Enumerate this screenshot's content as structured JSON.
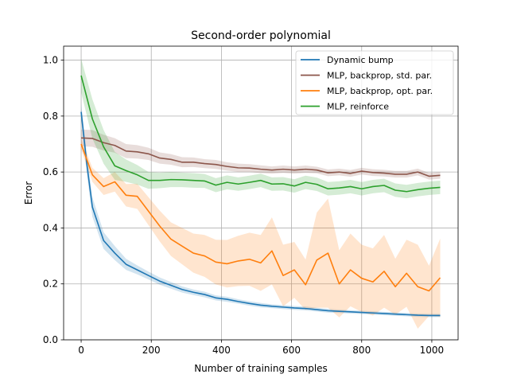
{
  "chart_data": {
    "type": "line",
    "title": "Second-order polynomial",
    "xlabel": "Number of training samples",
    "ylabel": "Error",
    "xlim": [
      -50,
      1075
    ],
    "ylim": [
      0.0,
      1.05
    ],
    "xticks": [
      0,
      200,
      400,
      600,
      800,
      1000
    ],
    "yticks": [
      0.0,
      0.2,
      0.4,
      0.6,
      0.8,
      1.0
    ],
    "xtick_labels": [
      "0",
      "200",
      "400",
      "600",
      "800",
      "1000"
    ],
    "ytick_labels": [
      "0.0",
      "0.2",
      "0.4",
      "0.6",
      "0.8",
      "1.0"
    ],
    "grid": true,
    "legend_position": "top-right",
    "series": [
      {
        "name": "Dynamic bump",
        "color": "#1f77b4",
        "x": [
          0,
          16,
          32,
          64,
          96,
          128,
          160,
          192,
          224,
          256,
          288,
          320,
          352,
          384,
          416,
          448,
          480,
          512,
          544,
          576,
          608,
          640,
          672,
          704,
          736,
          768,
          800,
          832,
          864,
          896,
          928,
          960,
          992,
          1024
        ],
        "y": [
          0.815,
          0.63,
          0.475,
          0.355,
          0.31,
          0.27,
          0.25,
          0.23,
          0.21,
          0.195,
          0.18,
          0.17,
          0.162,
          0.15,
          0.145,
          0.137,
          0.13,
          0.124,
          0.12,
          0.117,
          0.114,
          0.112,
          0.108,
          0.104,
          0.102,
          0.1,
          0.098,
          0.096,
          0.094,
          0.092,
          0.09,
          0.088,
          0.087,
          0.087
        ],
        "band": [
          0.03,
          0.035,
          0.035,
          0.03,
          0.025,
          0.02,
          0.016,
          0.014,
          0.013,
          0.012,
          0.011,
          0.01,
          0.01,
          0.009,
          0.009,
          0.008,
          0.008,
          0.008,
          0.007,
          0.007,
          0.007,
          0.007,
          0.007,
          0.007,
          0.006,
          0.006,
          0.006,
          0.006,
          0.006,
          0.006,
          0.006,
          0.006,
          0.006,
          0.006
        ]
      },
      {
        "name": "MLP, backprop, std. par.",
        "color": "#8c564b",
        "x": [
          0,
          32,
          64,
          96,
          128,
          160,
          192,
          224,
          256,
          288,
          320,
          352,
          384,
          416,
          448,
          480,
          512,
          544,
          576,
          608,
          640,
          672,
          704,
          736,
          768,
          800,
          832,
          864,
          896,
          928,
          960,
          992,
          1024
        ],
        "y": [
          0.722,
          0.72,
          0.705,
          0.695,
          0.675,
          0.672,
          0.665,
          0.65,
          0.645,
          0.635,
          0.635,
          0.63,
          0.627,
          0.62,
          0.615,
          0.614,
          0.61,
          0.607,
          0.61,
          0.607,
          0.61,
          0.607,
          0.597,
          0.6,
          0.595,
          0.603,
          0.598,
          0.596,
          0.592,
          0.592,
          0.6,
          0.585,
          0.588
        ],
        "band": [
          0.03,
          0.03,
          0.028,
          0.026,
          0.025,
          0.024,
          0.022,
          0.02,
          0.019,
          0.018,
          0.017,
          0.016,
          0.016,
          0.015,
          0.015,
          0.014,
          0.014,
          0.013,
          0.013,
          0.013,
          0.013,
          0.012,
          0.012,
          0.012,
          0.012,
          0.012,
          0.012,
          0.012,
          0.012,
          0.012,
          0.012,
          0.012,
          0.012
        ]
      },
      {
        "name": "MLP, backprop, opt. par.",
        "color": "#ff7f0e",
        "x": [
          0,
          32,
          64,
          96,
          128,
          160,
          192,
          224,
          256,
          288,
          320,
          352,
          384,
          416,
          448,
          480,
          512,
          544,
          576,
          608,
          640,
          672,
          704,
          736,
          768,
          800,
          832,
          864,
          896,
          928,
          960,
          992,
          1024
        ],
        "y": [
          0.7,
          0.59,
          0.548,
          0.565,
          0.517,
          0.513,
          0.46,
          0.407,
          0.36,
          0.335,
          0.31,
          0.3,
          0.278,
          0.272,
          0.282,
          0.288,
          0.275,
          0.318,
          0.23,
          0.25,
          0.197,
          0.285,
          0.31,
          0.2,
          0.25,
          0.22,
          0.207,
          0.245,
          0.19,
          0.238,
          0.19,
          0.175,
          0.222
        ],
        "band": [
          0.02,
          0.025,
          0.03,
          0.035,
          0.04,
          0.045,
          0.05,
          0.055,
          0.06,
          0.065,
          0.07,
          0.075,
          0.08,
          0.085,
          0.09,
          0.095,
          0.1,
          0.12,
          0.11,
          0.1,
          0.09,
          0.17,
          0.195,
          0.12,
          0.13,
          0.12,
          0.12,
          0.13,
          0.1,
          0.12,
          0.15,
          0.09,
          0.14
        ]
      },
      {
        "name": "MLP, reinforce",
        "color": "#2ca02c",
        "x": [
          0,
          32,
          64,
          96,
          128,
          160,
          192,
          224,
          256,
          288,
          320,
          352,
          384,
          416,
          448,
          480,
          512,
          544,
          576,
          608,
          640,
          672,
          704,
          736,
          768,
          800,
          832,
          864,
          896,
          928,
          960,
          992,
          1024
        ],
        "y": [
          0.945,
          0.79,
          0.69,
          0.622,
          0.605,
          0.59,
          0.57,
          0.57,
          0.573,
          0.572,
          0.57,
          0.568,
          0.553,
          0.563,
          0.557,
          0.563,
          0.57,
          0.557,
          0.558,
          0.55,
          0.563,
          0.556,
          0.54,
          0.543,
          0.548,
          0.54,
          0.548,
          0.552,
          0.535,
          0.53,
          0.537,
          0.542,
          0.545
        ],
        "band": [
          0.06,
          0.07,
          0.06,
          0.05,
          0.04,
          0.035,
          0.03,
          0.028,
          0.027,
          0.026,
          0.026,
          0.025,
          0.025,
          0.025,
          0.024,
          0.024,
          0.024,
          0.024,
          0.024,
          0.024,
          0.024,
          0.024,
          0.024,
          0.024,
          0.024,
          0.024,
          0.024,
          0.024,
          0.024,
          0.024,
          0.024,
          0.024,
          0.024
        ]
      }
    ]
  }
}
